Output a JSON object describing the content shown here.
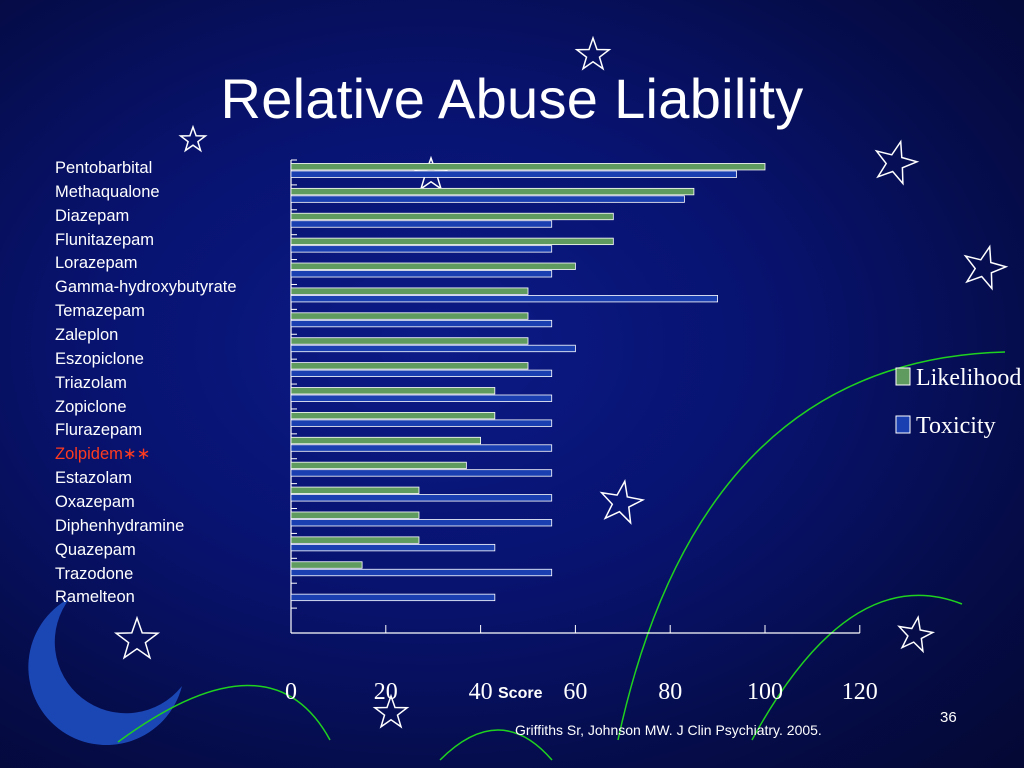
{
  "slide": {
    "title": "Relative Abuse Liability",
    "citation": "Griffiths Sr, Johnson MW. J Clin Psychiatry. 2005.",
    "page_number": "36"
  },
  "colors": {
    "background": "#081370",
    "likelihood_bar": "#5f9a5f",
    "toxicity_bar": "#1a3fb0",
    "highlight_text": "#ff3b1f",
    "decor_arc": "#1fd21f"
  },
  "icons": [
    "star-outline-icon",
    "crescent-moon-icon"
  ],
  "chart_data": {
    "type": "bar",
    "orientation": "horizontal",
    "categories": [
      "Pentobarbital",
      "Methaqualone",
      "Diazepam",
      "Flunitazepam",
      "Lorazepam",
      "Gamma-hydroxybutyrate",
      "Temazepam",
      "Zaleplon",
      "Eszopiclone",
      "Triazolam",
      "Zopiclone",
      "Flurazepam",
      "Zolpidem∗∗",
      "Estazolam",
      "Oxazepam",
      "Diphenhydramine",
      "Quazepam",
      "Trazodone",
      "Ramelteon"
    ],
    "highlighted_category": "Zolpidem∗∗",
    "series": [
      {
        "name": "Likelihood",
        "values": [
          100,
          85,
          68,
          68,
          60,
          50,
          50,
          50,
          50,
          43,
          43,
          40,
          37,
          27,
          27,
          27,
          15,
          0,
          null
        ]
      },
      {
        "name": "Toxicity",
        "values": [
          94,
          83,
          55,
          55,
          55,
          90,
          55,
          60,
          55,
          55,
          55,
          55,
          55,
          55,
          55,
          43,
          55,
          43,
          null
        ]
      }
    ],
    "xlabel": "Score",
    "xlim": [
      0,
      120
    ],
    "xticks": [
      "0",
      "20",
      "40",
      "60",
      "80",
      "100",
      "120"
    ],
    "legend_position": "right",
    "grid": false
  }
}
